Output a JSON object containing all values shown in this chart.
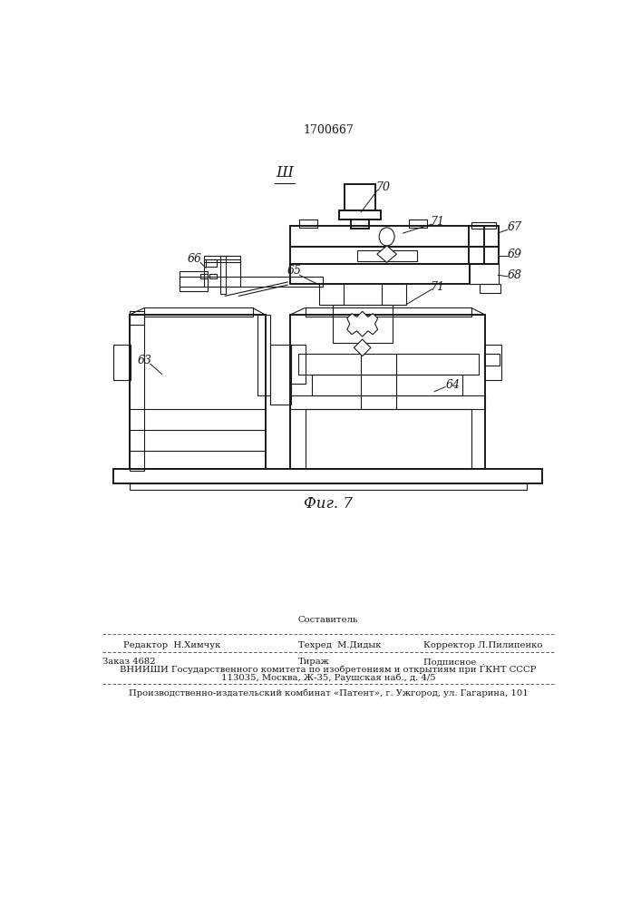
{
  "patent_number": "1700667",
  "fig_label": "Фиг. 7",
  "bg_color": "#ffffff",
  "line_color": "#1a1a1a",
  "lw": 0.8,
  "lwt": 1.4,
  "bottom": {
    "sestavitel": "Составитель",
    "redaktor": "Редактор  Н.Химчук",
    "tehred": "Техред  М.Дидык",
    "korrektor": "Корректор Л.Пилипенко",
    "zakaz": "Заказ 4682",
    "tirazh": "Тираж",
    "podpisnoe": "Подписное  .",
    "vniipи": "ВНИИШИ Государственного комитета по изобретениям и открытиям при ГКНТ СССР",
    "address": "113035, Москва, Ж-35, Раушская наб., д. 4/5",
    "patent_plant": "Производственно-издательский комбинат «Патент», г. Ужгород, ул. Гагарина, 101"
  }
}
